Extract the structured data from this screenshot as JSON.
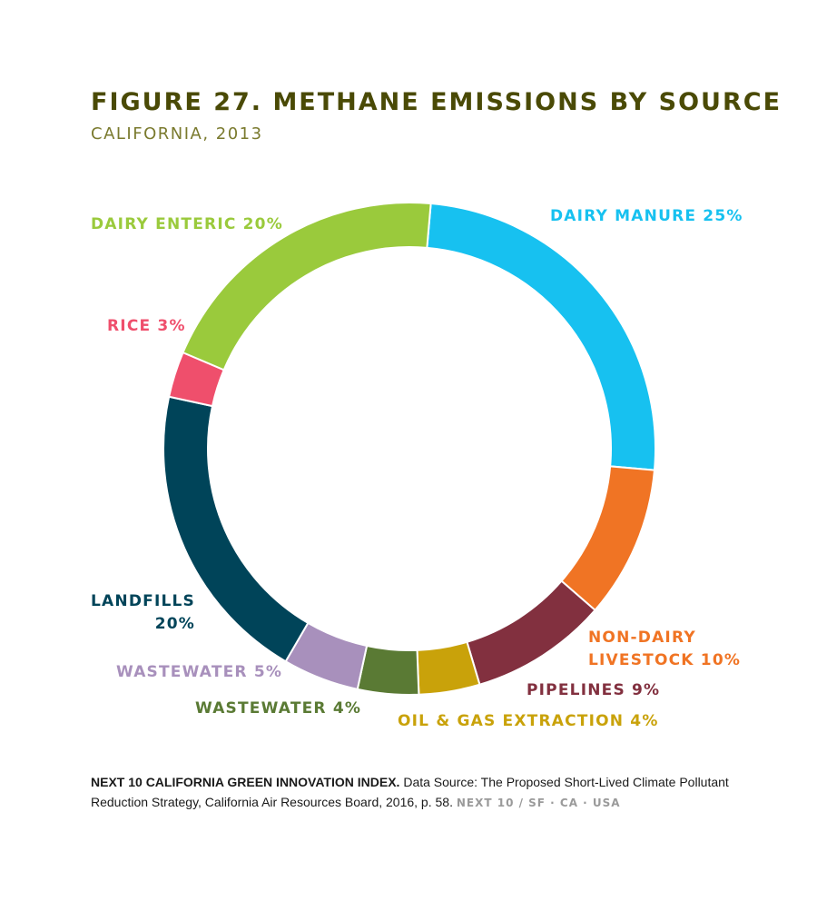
{
  "chart_data": {
    "type": "pie",
    "title": "FIGURE 27. METHANE EMISSIONS BY SOURCE",
    "subtitle": "CALIFORNIA, 2013",
    "slices": [
      {
        "label_lines": [
          "DAIRY MANURE 25%"
        ],
        "value": 25,
        "color": "#17c1f0"
      },
      {
        "label_lines": [
          "NON-DAIRY",
          "LIVESTOCK 10%"
        ],
        "value": 10,
        "color": "#f07424"
      },
      {
        "label_lines": [
          "PIPELINES 9%"
        ],
        "value": 9,
        "color": "#82303f"
      },
      {
        "label_lines": [
          "OIL & GAS EXTRACTION 4%"
        ],
        "value": 4,
        "color": "#c9a20a"
      },
      {
        "label_lines": [
          "WASTEWATER 4%"
        ],
        "value": 4,
        "color": "#5a7a34"
      },
      {
        "label_lines": [
          "WASTEWATER 5%"
        ],
        "value": 5,
        "color": "#a890bc"
      },
      {
        "label_lines": [
          "LANDFILLS",
          "20%"
        ],
        "value": 20,
        "color": "#004459"
      },
      {
        "label_lines": [
          "RICE 3%"
        ],
        "value": 3,
        "color": "#ef4f6c"
      },
      {
        "label_lines": [
          "DAIRY ENTERIC 20%"
        ],
        "value": 20,
        "color": "#9aca3c"
      }
    ]
  },
  "footnote": {
    "bold": "NEXT 10 CALIFORNIA GREEN INNOVATION INDEX.",
    "text": " Data Source: The Proposed Short-Lived Climate Pollutant Reduction Strategy, California Air Resources Board, 2016, p. 58.",
    "brand": "NEXT 10  /  SF · CA · USA"
  },
  "colors": {
    "title": "#4a4a06",
    "subtitle": "#7a7a2e"
  }
}
